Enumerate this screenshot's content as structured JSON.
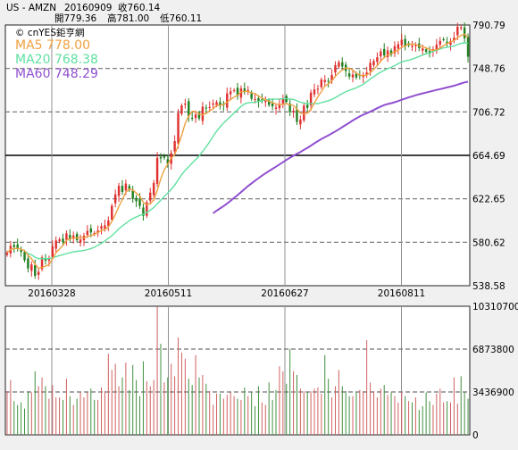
{
  "chart_data": {
    "type": "candlestick",
    "header": {
      "symbol": "US - AMZN",
      "date": "20160909",
      "close_label": "收760.14",
      "open_label": "開779.36",
      "high_label": "高781.00",
      "low_label": "低760.11"
    },
    "watermark": "© cnYES鉅亨網",
    "colors": {
      "up": "#e03030",
      "down": "#208020",
      "ma5": "#f0a040",
      "ma20": "#60e0a0",
      "ma60": "#9050d0",
      "grid": "#808080",
      "frame": "#202020"
    },
    "price_panel": {
      "ylim": [
        538.58,
        790.79
      ],
      "yticks": [
        "790.79",
        "748.76",
        "706.72",
        "664.69",
        "622.65",
        "580.62",
        "538.58"
      ],
      "xticks": [
        "20160328",
        "20160511",
        "20160627",
        "20160811"
      ],
      "legend": [
        {
          "name": "MA5",
          "value": "778.00"
        },
        {
          "name": "MA20",
          "value": "768.38"
        },
        {
          "name": "MA60",
          "value": "748.29"
        }
      ]
    },
    "volume_panel": {
      "ylim": [
        0,
        10310700
      ],
      "yticks": [
        "10310700",
        "6873800",
        "3436900",
        "0"
      ]
    },
    "series": {
      "close": [
        570.5,
        577.2,
        576.1,
        574.5,
        571.3,
        563.3,
        555.3,
        559.2,
        548.2,
        552.1,
        566.1,
        562.9,
        564.8,
        576.8,
        582.4,
        583.4,
        580.6,
        589.2,
        584.1,
        587.2,
        582.7,
        583.3,
        586.9,
        591.6,
        590.1,
        589.6,
        592.1,
        596.2,
        597.0,
        601.7,
        615.9,
        627.0,
        635.2,
        629.3,
        637.4,
        631.3,
        622.7,
        620.2,
        615.8,
        606.2,
        619.3,
        628.6,
        638.0,
        662.3,
        661.8,
        662.5,
        656.5,
        667.0,
        678.5,
        705.7,
        712.9,
        714.7,
        702.5,
        700.8,
        704.2,
        700.4,
        711.7,
        710.1,
        711.4,
        714.9,
        716.1,
        713.0,
        713.2,
        724.6,
        726.6,
        727.7,
        722.2,
        729.5,
        726.2,
        728.0,
        719.5,
        719.2,
        716.5,
        717.9,
        717.9,
        713.5,
        712.1,
        711.0,
        714.2,
        719.6,
        716.5,
        706.6,
        707.8,
        697.0,
        699.4,
        712.8,
        710.7,
        725.4,
        728.4,
        729.1,
        738.0,
        737.6,
        736.0,
        742.5,
        752.0,
        754.8,
        750.7,
        746.4,
        740.9,
        742.9,
        740.0,
        741.9,
        742.5,
        744.8,
        754.2,
        755.9,
        759.6,
        765.2,
        761.4,
        766.2,
        762.0,
        770.3,
        772.2,
        776.5,
        770.9,
        771.1,
        770.6,
        771.3,
        768.4,
        768.1,
        764.9,
        763.1,
        767.4,
        771.7,
        775.4,
        776.9,
        772.6,
        775.2,
        778.5,
        789.1,
        788.5,
        778.0,
        760.1
      ],
      "volume": [
        3.5,
        4.4,
        2.7,
        2.4,
        2.6,
        2.1,
        3.5,
        3.4,
        5.1,
        3.9,
        4.6,
        3.9,
        2.9,
        4.0,
        3.0,
        3.0,
        2.8,
        4.5,
        3.1,
        2.4,
        2.9,
        3.4,
        3.0,
        3.4,
        3.7,
        2.8,
        2.8,
        3.8,
        3.5,
        6.5,
        5.2,
        5.7,
        3.9,
        4.6,
        5.8,
        3.6,
        5.6,
        4.4,
        3.1,
        5.9,
        4.3,
        3.9,
        4.4,
        10.3,
        7.3,
        4.2,
        4.6,
        5.7,
        4.7,
        7.8,
        6.6,
        6.1,
        4.5,
        4.0,
        6.4,
        4.6,
        4.8,
        4.1,
        3.5,
        2.4,
        3.3,
        3.3,
        2.9,
        3.2,
        3.4,
        3.1,
        2.9,
        2.8,
        3.8,
        3.1,
        3.4,
        2.3,
        3.9,
        2.6,
        2.4,
        4.2,
        2.8,
        3.6,
        5.5,
        5.1,
        4.1,
        6.9,
        5.1,
        4.8,
        3.7,
        3.5,
        3.4,
        3.5,
        3.7,
        3.8,
        3.3,
        6.4,
        4.5,
        3.0,
        3.9,
        5.2,
        3.9,
        3.5,
        3.1,
        3.1,
        3.4,
        3.6,
        3.5,
        7.6,
        4.2,
        3.5,
        3.0,
        3.7,
        4.0,
        3.2,
        3.4,
        3.1,
        2.6,
        3.4,
        3.1,
        2.7,
        2.6,
        3.0,
        2.0,
        2.3,
        3.4,
        2.7,
        2.4,
        3.3,
        3.7,
        2.6,
        2.7,
        2.6,
        4.6,
        2.5,
        4.7,
        3.4,
        2.9
      ]
    }
  }
}
